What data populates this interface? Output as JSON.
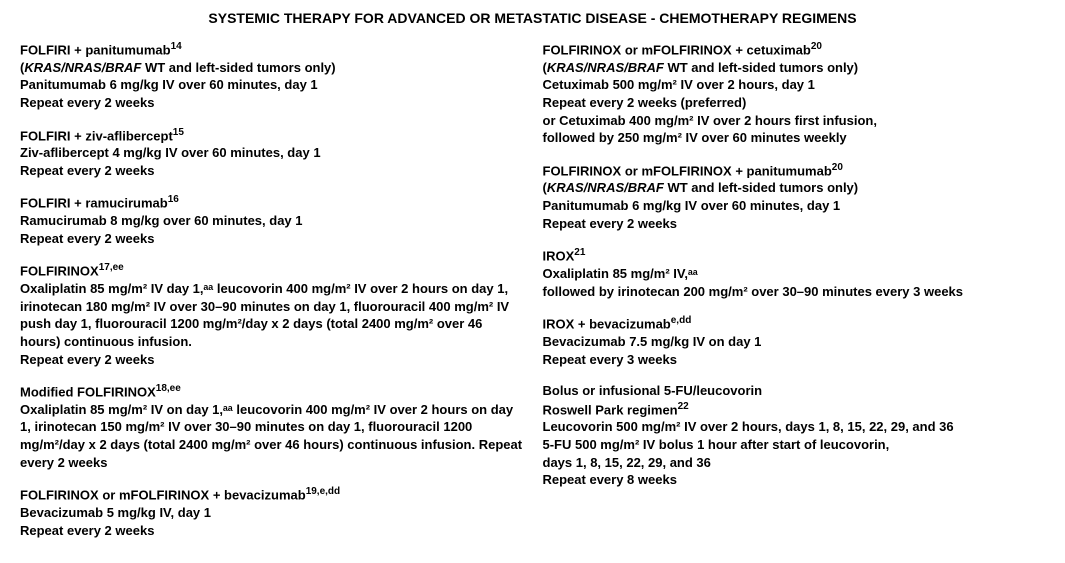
{
  "title": "SYSTEMIC THERAPY FOR ADVANCED OR METASTATIC DISEASE - CHEMOTHERAPY REGIMENS",
  "left": [
    {
      "name": "FOLFIRI + panitumumab",
      "ref": "14",
      "lines": [
        {
          "text": "(KRAS/NRAS/BRAF WT and left-sided tumors only)",
          "italicPart": "KRAS/NRAS/BRAF"
        },
        {
          "text": "Panitumumab 6 mg/kg IV over 60 minutes, day 1"
        },
        {
          "text": "Repeat every 2 weeks"
        }
      ]
    },
    {
      "name": "FOLFIRI + ziv-aflibercept",
      "ref": "15",
      "lines": [
        {
          "text": "Ziv-aflibercept 4 mg/kg IV over 60 minutes, day 1"
        },
        {
          "text": "Repeat every 2 weeks"
        }
      ]
    },
    {
      "name": "FOLFIRI + ramucirumab",
      "ref": "16",
      "lines": [
        {
          "text": "Ramucirumab 8 mg/kg over 60 minutes, day 1"
        },
        {
          "text": "Repeat every 2 weeks"
        }
      ]
    },
    {
      "name": "FOLFIRINOX",
      "ref": "17,ee",
      "lines": [
        {
          "text": "Oxaliplatin 85 mg/m² IV day 1,ᵃᵃ leucovorin 400 mg/m² IV over 2 hours on day 1, irinotecan 180 mg/m² IV over 30–90 minutes on day 1, fluorouracil  400 mg/m² IV push day 1, fluorouracil 1200 mg/m²/day x 2 days (total 2400 mg/m² over 46 hours) continuous infusion."
        },
        {
          "text": "Repeat every 2 weeks"
        }
      ]
    },
    {
      "name": "Modified FOLFIRINOX",
      "ref": "18,ee",
      "lines": [
        {
          "text": "Oxaliplatin 85 mg/m² IV on day 1,ᵃᵃ leucovorin 400 mg/m² IV over 2 hours on day 1, irinotecan 150 mg/m² IV over 30–90 minutes on day 1, fluorouracil 1200 mg/m²/day x 2 days (total 2400 mg/m² over 46 hours) continuous infusion. Repeat every 2 weeks"
        }
      ]
    },
    {
      "name": "FOLFIRINOX or mFOLFIRINOX + bevacizumab",
      "ref": "19,e,dd",
      "lines": [
        {
          "text": "Bevacizumab 5 mg/kg IV, day 1"
        },
        {
          "text": "Repeat every 2 weeks"
        }
      ]
    }
  ],
  "right": [
    {
      "name": "FOLFIRINOX or mFOLFIRINOX + cetuximab",
      "ref": "20",
      "lines": [
        {
          "text": "(KRAS/NRAS/BRAF WT and left-sided tumors only)",
          "italicPart": "KRAS/NRAS/BRAF"
        },
        {
          "text": "Cetuximab 500 mg/m² IV over 2 hours, day 1"
        },
        {
          "text": "Repeat every 2 weeks (preferred)"
        },
        {
          "text": "or Cetuximab 400 mg/m² IV over 2 hours first infusion,"
        },
        {
          "text": "followed by 250 mg/m² IV over 60 minutes weekly"
        }
      ]
    },
    {
      "name": "FOLFIRINOX or mFOLFIRINOX + panitumumab",
      "ref": "20",
      "lines": [
        {
          "text": "(KRAS/NRAS/BRAF WT and left-sided tumors only)",
          "italicPart": "KRAS/NRAS/BRAF"
        },
        {
          "text": "Panitumumab 6 mg/kg IV over 60 minutes, day 1"
        },
        {
          "text": "Repeat every 2 weeks"
        }
      ]
    },
    {
      "name": "IROX",
      "ref": "21",
      "lines": [
        {
          "text": "Oxaliplatin 85 mg/m² IV,ᵃᵃ"
        },
        {
          "text": "followed by irinotecan 200 mg/m² over 30–90 minutes every 3 weeks"
        }
      ]
    },
    {
      "name": "IROX + bevacizumab",
      "ref": "e,dd",
      "lines": [
        {
          "text": "Bevacizumab 7.5 mg/kg IV on day 1"
        },
        {
          "text": "Repeat every 3 weeks"
        }
      ]
    },
    {
      "name": "Bolus or infusional 5-FU/leucovorin",
      "ref": "",
      "lines": [
        {
          "text": "Roswell Park regimen",
          "sup": "22"
        },
        {
          "text": "Leucovorin 500 mg/m² IV over 2 hours, days 1, 8, 15, 22, 29, and 36"
        },
        {
          "text": "5-FU 500 mg/m² IV bolus 1 hour after start of leucovorin,"
        },
        {
          "text": "days 1, 8, 15, 22, 29, and 36"
        },
        {
          "text": "Repeat every 8 weeks"
        }
      ]
    }
  ]
}
